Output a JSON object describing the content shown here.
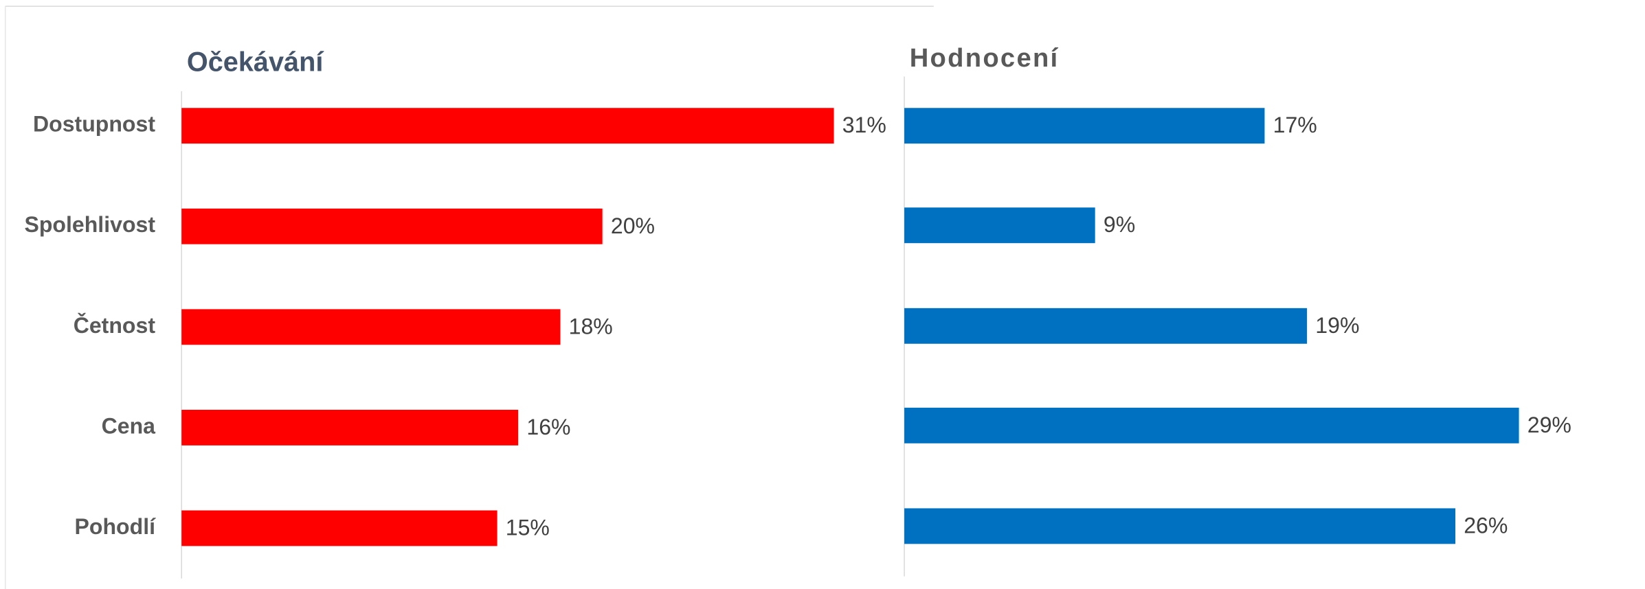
{
  "chart_data": [
    {
      "type": "bar",
      "orientation": "horizontal",
      "title": "Očekávání",
      "categories": [
        "Dostupnost",
        "Spolehlivost",
        "Četnost",
        "Cena",
        "Pohodlí"
      ],
      "values": [
        31,
        20,
        18,
        16,
        15
      ],
      "value_labels": [
        "31%",
        "20%",
        "18%",
        "16%",
        "15%"
      ],
      "color": "#ff0000",
      "xlim": [
        0,
        34
      ]
    },
    {
      "type": "bar",
      "orientation": "horizontal",
      "title": "Hodnocení",
      "values": [
        17,
        9,
        19,
        29,
        26
      ],
      "value_labels": [
        "17%",
        "9%",
        "19%",
        "29%",
        "26%"
      ],
      "color": "#0070c0",
      "xlim": [
        0,
        34.5
      ]
    }
  ]
}
